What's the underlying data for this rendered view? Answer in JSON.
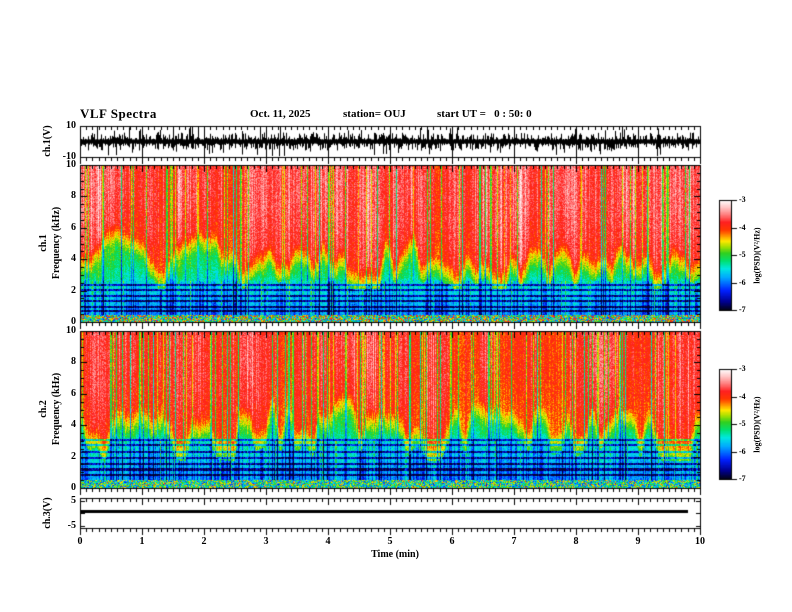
{
  "header": {
    "title": "VLF Spectra",
    "date": "Oct. 11, 2025",
    "station": "station= OUJ",
    "start_ut": "start UT =   0 : 50: 0"
  },
  "xaxis": {
    "label": "Time (min)",
    "tick_labels": [
      "0",
      "1",
      "2",
      "3",
      "4",
      "5",
      "6",
      "7",
      "8",
      "9",
      "10"
    ],
    "min": 0,
    "max": 10,
    "minor_step": 0.1
  },
  "panels": {
    "ch1_wave": {
      "ylabel": "ch.1(V)",
      "ytick_labels": [
        "10",
        "-10"
      ]
    },
    "spec1": {
      "ylabel_channel": "ch.1",
      "ylabel_axis": "Frequency (kHz)",
      "ytick_labels": [
        "10",
        "8",
        "6",
        "4",
        "2",
        "0"
      ]
    },
    "spec2": {
      "ylabel_channel": "ch.2",
      "ylabel_axis": "Frequency (kHz)",
      "ytick_labels": [
        "10",
        "8",
        "6",
        "4",
        "2",
        "0"
      ]
    },
    "ch3_wave": {
      "ylabel": "ch.3(V)",
      "ytick_labels": [
        "5",
        "-5"
      ]
    }
  },
  "colorbars": [
    {
      "label": "log(PSD)(V²/Hz)",
      "tick_labels": [
        "-3",
        "-4",
        "-5",
        "-6",
        "-7"
      ],
      "max": -3,
      "min": -7
    },
    {
      "label": "log(PSD)(V²/Hz)",
      "tick_labels": [
        "-3",
        "-4",
        "-5",
        "-6",
        "-7"
      ],
      "max": -3,
      "min": -7
    }
  ],
  "colors": {
    "background": "#ffffff",
    "frame": "#000000",
    "colormap_stops": [
      [
        0.0,
        "#020210"
      ],
      [
        0.08,
        "#000090"
      ],
      [
        0.18,
        "#0020ff"
      ],
      [
        0.3,
        "#00a8ff"
      ],
      [
        0.38,
        "#00e8e0"
      ],
      [
        0.45,
        "#00e070"
      ],
      [
        0.52,
        "#30d020"
      ],
      [
        0.58,
        "#a8e000"
      ],
      [
        0.63,
        "#ffe800"
      ],
      [
        0.68,
        "#ff9000"
      ],
      [
        0.73,
        "#ff3800"
      ],
      [
        0.8,
        "#ff2020"
      ],
      [
        0.86,
        "#ff7070"
      ],
      [
        0.93,
        "#ffc0c0"
      ],
      [
        1.0,
        "#ffffff"
      ]
    ]
  },
  "chart_data": [
    {
      "panel": "ch1_waveform",
      "type": "line",
      "xlabel": "Time (min)",
      "xlim": [
        0,
        10
      ],
      "ylabel": "ch.1(V)",
      "ylim": [
        -10,
        10
      ],
      "yticks": [
        10,
        -10
      ],
      "description": "Dense black broadband noise centered on 0 V with envelope of roughly +/-3 V and frequent impulsive sferic spikes reaching +/-10 V throughout the full 10-minute record; vertical gridlines at every whole minute"
    },
    {
      "panel": "ch1_spectrogram",
      "type": "heatmap",
      "xlabel": "Time (min)",
      "xlim": [
        0,
        10
      ],
      "ylabel": "ch.1 Frequency (kHz)",
      "ylim": [
        0,
        10
      ],
      "zlabel": "log(PSD)(V²/Hz)",
      "zlim": [
        -7,
        -3
      ],
      "mean_profile": [
        {
          "f_khz": "0-0.4",
          "log_psd": -4.8
        },
        {
          "f_khz": "0.4-2.6",
          "log_psd": -6.1
        },
        {
          "f_khz": "2.6-4.2",
          "log_psd": -5.2
        },
        {
          "f_khz": "4.2-5.5",
          "log_psd": -4.4
        },
        {
          "f_khz": "5.5-10",
          "log_psd": -3.8
        }
      ],
      "features": "Red/orange saturation above ~5 kHz with dense vertical sferic striations (yellow-green columns); flame-like green boundary fluctuating between ~4 and ~6.5 kHz; cyan background below 2.6 kHz crossed by dark-blue horizontal interference bands (~0.6-2.4 kHz) and dark vertical columns; thin mottled red/dark band below ~0.4 kHz"
    },
    {
      "panel": "ch2_spectrogram",
      "type": "heatmap",
      "xlabel": "Time (min)",
      "xlim": [
        0,
        10
      ],
      "ylabel": "ch.2 Frequency (kHz)",
      "ylim": [
        0,
        10
      ],
      "zlabel": "log(PSD)(V²/Hz)",
      "zlim": [
        -7,
        -3
      ],
      "mean_profile": [
        {
          "f_khz": "0-0.5",
          "log_psd": -5.2
        },
        {
          "f_khz": "0.5-3.0",
          "log_psd": -6.0
        },
        {
          "f_khz": "3.0-4.2",
          "log_psd": -5.1
        },
        {
          "f_khz": "4.2-10",
          "log_psd": -4.0
        }
      ],
      "features": "Similar to ch.1 but with more yellow/orange mixed into the high-frequency red zone, green flame boundary slightly lower (~3.5-6 kHz), blue/cyan banded region extending up to ~3 kHz with prominent dark-blue horizontal bands and a greener mottled band near 0 kHz"
    },
    {
      "panel": "ch3_waveform",
      "type": "line",
      "xlabel": "Time (min)",
      "xlim": [
        0,
        10
      ],
      "ylabel": "ch.3(V)",
      "ylim": [
        -6,
        6
      ],
      "yticks": [
        5,
        -5
      ],
      "x": [
        0,
        9.8
      ],
      "y": [
        0.5,
        0.5
      ],
      "description": "Constant thick flat trace at approximately +0.5 V extending from 0 to ~9.8 min"
    }
  ]
}
